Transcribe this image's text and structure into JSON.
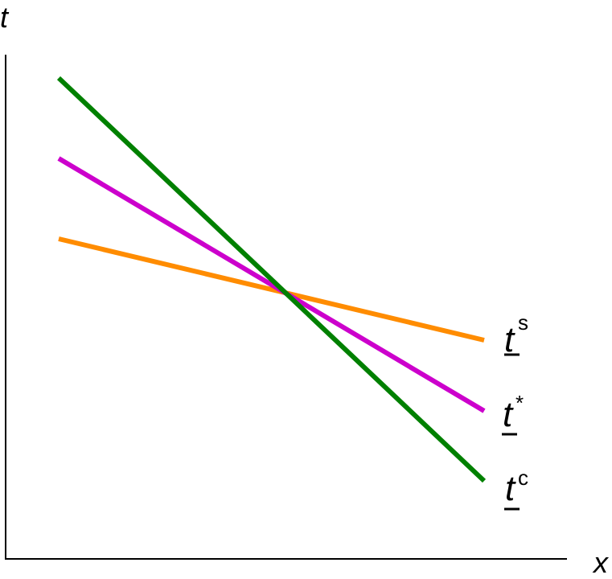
{
  "axes": {
    "y_label": "t",
    "x_label": "x"
  },
  "lines": [
    {
      "label": "t",
      "superscript": "s",
      "color": "#ff8c00"
    },
    {
      "label": "t",
      "superscript": "*",
      "color": "#cc00cc"
    },
    {
      "label": "t",
      "superscript": "c",
      "color": "#008000"
    }
  ]
}
